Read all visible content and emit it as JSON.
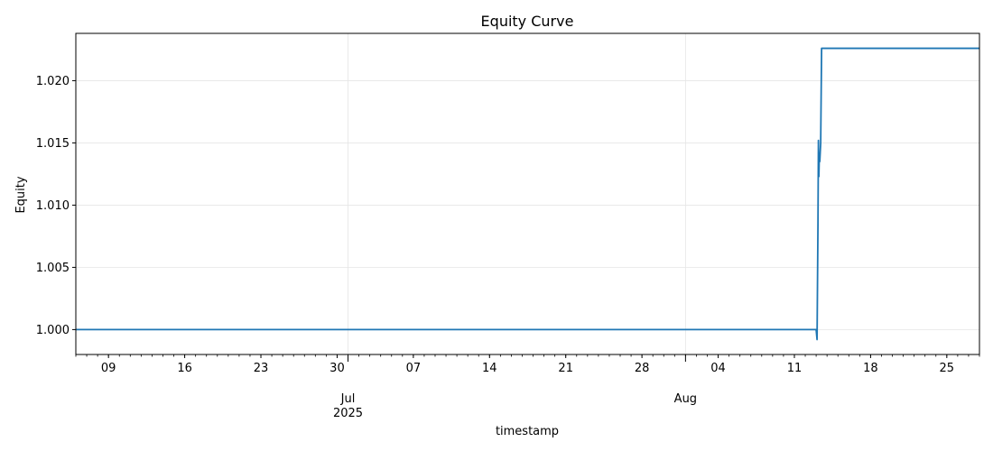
{
  "chart_data": {
    "type": "line",
    "title": "Equity Curve",
    "xlabel": "timestamp",
    "ylabel": "Equity",
    "xlim": [
      "2025-06-06",
      "2025-08-28"
    ],
    "ylim": [
      0.998,
      1.0238
    ],
    "y_ticks": [
      1.0,
      1.005,
      1.01,
      1.015,
      1.02
    ],
    "y_tick_labels": [
      "1.000",
      "1.005",
      "1.010",
      "1.015",
      "1.020"
    ],
    "x_major_ticks": [
      {
        "date": "2025-06-09",
        "label": "09"
      },
      {
        "date": "2025-06-16",
        "label": "16"
      },
      {
        "date": "2025-06-23",
        "label": "23"
      },
      {
        "date": "2025-06-30",
        "label": "30"
      },
      {
        "date": "2025-07-07",
        "label": "07"
      },
      {
        "date": "2025-07-14",
        "label": "14"
      },
      {
        "date": "2025-07-21",
        "label": "21"
      },
      {
        "date": "2025-07-28",
        "label": "28"
      },
      {
        "date": "2025-08-04",
        "label": "04"
      },
      {
        "date": "2025-08-11",
        "label": "11"
      },
      {
        "date": "2025-08-18",
        "label": "18"
      },
      {
        "date": "2025-08-25",
        "label": "25"
      }
    ],
    "x_month_labels": [
      {
        "date": "2025-07-01",
        "label": "Jul",
        "sublabel": "2025"
      },
      {
        "date": "2025-08-01",
        "label": "Aug",
        "sublabel": ""
      }
    ],
    "grid": true,
    "series": [
      {
        "color": "#1f77b4",
        "points": [
          {
            "x": "2025-06-06T00:00",
            "y": 1.0
          },
          {
            "x": "2025-08-13T00:00",
            "y": 1.0
          },
          {
            "x": "2025-08-13T02:00",
            "y": 0.9992
          },
          {
            "x": "2025-08-13T04:00",
            "y": 1.0085
          },
          {
            "x": "2025-08-13T05:00",
            "y": 1.0152
          },
          {
            "x": "2025-08-13T06:00",
            "y": 1.0123
          },
          {
            "x": "2025-08-13T07:00",
            "y": 1.014
          },
          {
            "x": "2025-08-13T08:00",
            "y": 1.0135
          },
          {
            "x": "2025-08-13T10:00",
            "y": 1.015
          },
          {
            "x": "2025-08-13T12:00",
            "y": 1.0226
          },
          {
            "x": "2025-08-28T00:00",
            "y": 1.0226
          }
        ]
      }
    ]
  }
}
